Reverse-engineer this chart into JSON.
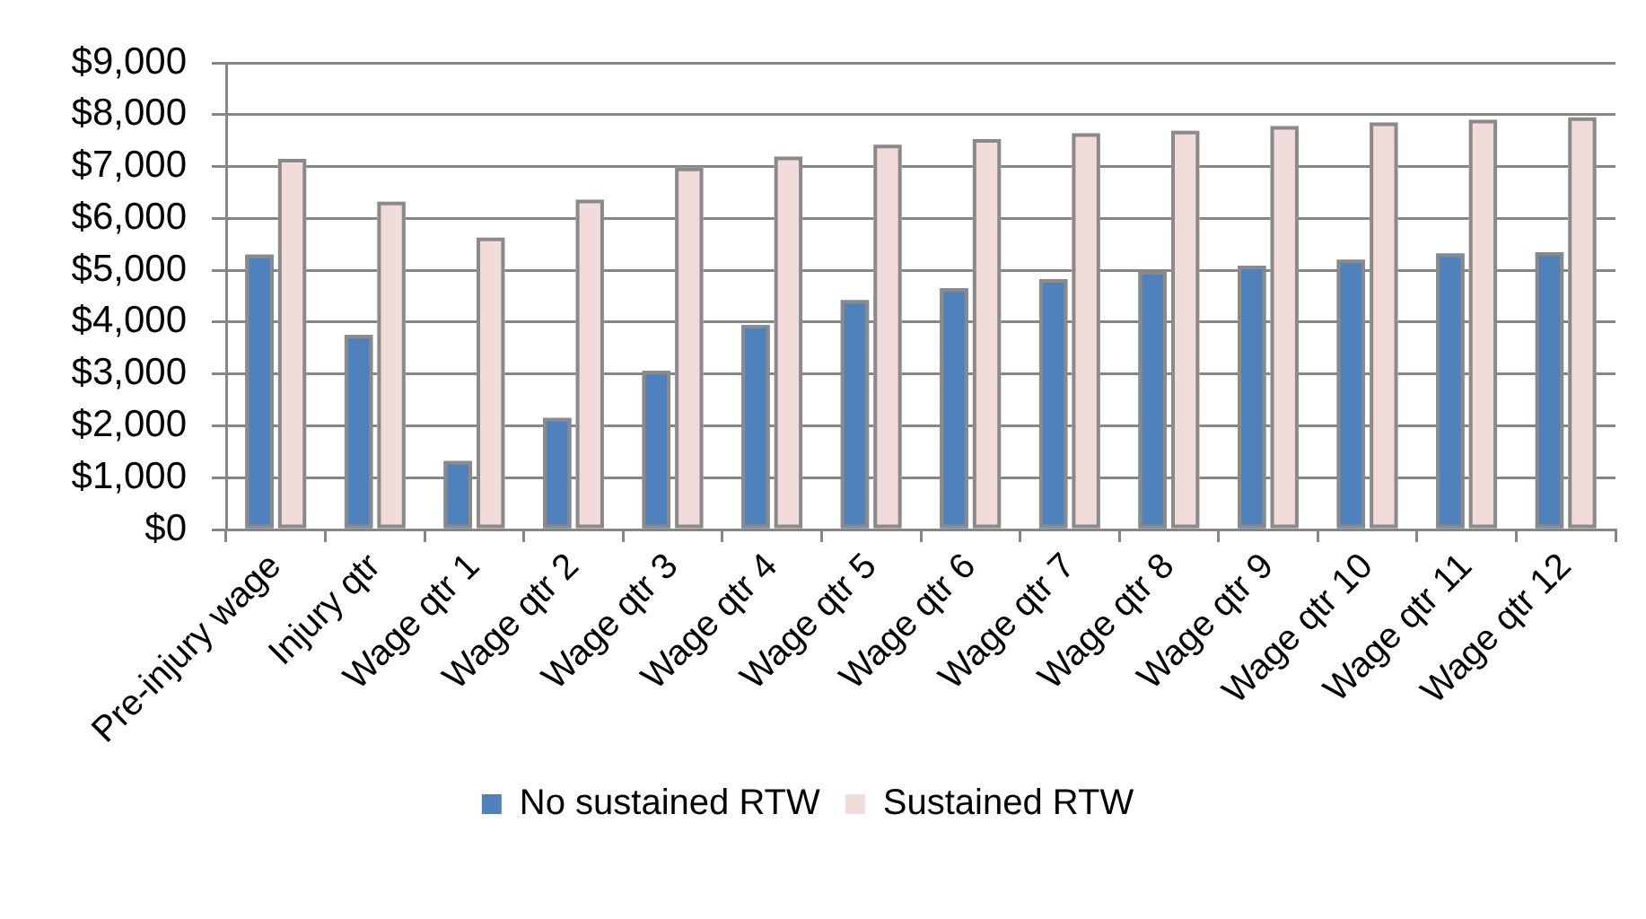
{
  "chart_data": {
    "type": "bar",
    "categories": [
      "Pre-injury wage",
      "Injury qtr",
      "Wage qtr 1",
      "Wage qtr 2",
      "Wage qtr 3",
      "Wage qtr 4",
      "Wage qtr 5",
      "Wage qtr 6",
      "Wage qtr 7",
      "Wage qtr 8",
      "Wage qtr 9",
      "Wage qtr 10",
      "Wage qtr 11",
      "Wage qtr 12"
    ],
    "series": [
      {
        "name": "No sustained RTW",
        "color": "#4f81bd",
        "values": [
          5300,
          3750,
          1320,
          2150,
          3060,
          3940,
          4420,
          4650,
          4830,
          4980,
          5090,
          5200,
          5320,
          5350
        ]
      },
      {
        "name": "Sustained RTW",
        "color": "#f2dcdb",
        "values": [
          7150,
          6320,
          5630,
          6360,
          6980,
          7190,
          7420,
          7530,
          7640,
          7690,
          7780,
          7850,
          7900,
          7950
        ]
      }
    ],
    "ylim": [
      0,
      9000
    ],
    "yticks": [
      {
        "value": 0,
        "label": "$0"
      },
      {
        "value": 1000,
        "label": "$1,000"
      },
      {
        "value": 2000,
        "label": "$2,000"
      },
      {
        "value": 3000,
        "label": "$3,000"
      },
      {
        "value": 4000,
        "label": "$4,000"
      },
      {
        "value": 5000,
        "label": "$5,000"
      },
      {
        "value": 6000,
        "label": "$6,000"
      },
      {
        "value": 7000,
        "label": "$7,000"
      },
      {
        "value": 8000,
        "label": "$8,000"
      },
      {
        "value": 9000,
        "label": "$9,000"
      }
    ],
    "grid": "y",
    "legend": "bottom"
  }
}
